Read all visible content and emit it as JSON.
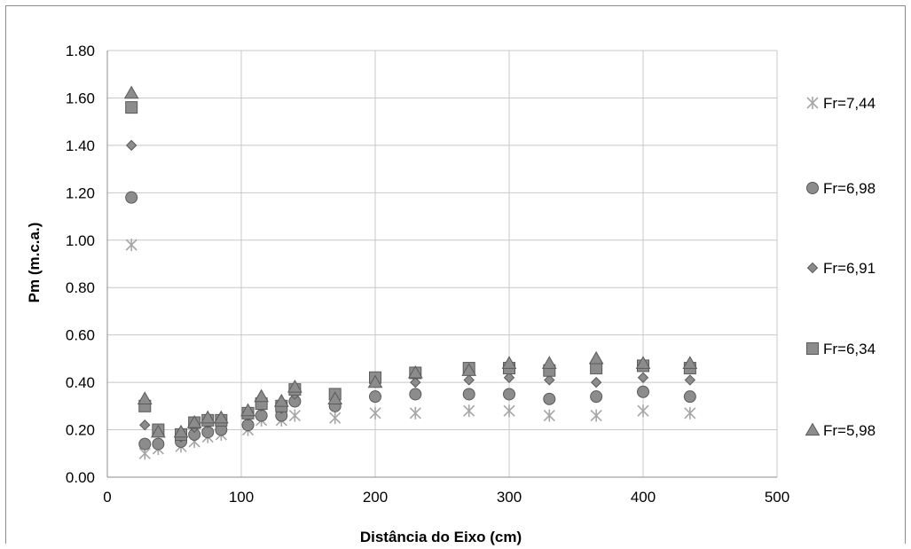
{
  "chart_data": {
    "type": "scatter",
    "title": "",
    "xlabel": "Distância do Eixo (cm)",
    "ylabel": "Pm (m.c.a.)",
    "xlim": [
      0,
      500
    ],
    "ylim": [
      0,
      1.8
    ],
    "xticks": [
      0,
      100,
      200,
      300,
      400,
      500
    ],
    "xtick_labels": [
      "0",
      "100",
      "200",
      "300",
      "400",
      "500"
    ],
    "yticks": [
      0,
      0.2,
      0.4,
      0.6,
      0.8,
      1.0,
      1.2,
      1.4,
      1.6,
      1.8
    ],
    "ytick_labels": [
      "0.00",
      "0.20",
      "0.40",
      "0.60",
      "0.80",
      "1.00",
      "1.20",
      "1.40",
      "1.60",
      "1.80"
    ],
    "grid": true,
    "legend_position": "right",
    "series": [
      {
        "name": "Fr=7,44",
        "marker": "asterisk",
        "color": "#a6a6a6",
        "x": [
          18,
          28,
          38,
          55,
          65,
          75,
          85,
          105,
          115,
          130,
          140,
          170,
          200,
          230,
          270,
          300,
          330,
          365,
          400,
          435
        ],
        "y": [
          0.98,
          0.1,
          0.12,
          0.13,
          0.15,
          0.17,
          0.18,
          0.2,
          0.24,
          0.24,
          0.26,
          0.25,
          0.27,
          0.27,
          0.28,
          0.28,
          0.26,
          0.26,
          0.28,
          0.27
        ]
      },
      {
        "name": "Fr=6,98",
        "marker": "circle",
        "color": "#8c8c8c",
        "x": [
          18,
          28,
          38,
          55,
          65,
          75,
          85,
          105,
          115,
          130,
          140,
          170,
          200,
          230,
          270,
          300,
          330,
          365,
          400,
          435
        ],
        "y": [
          1.18,
          0.14,
          0.14,
          0.15,
          0.18,
          0.19,
          0.2,
          0.22,
          0.26,
          0.26,
          0.32,
          0.3,
          0.34,
          0.35,
          0.35,
          0.35,
          0.33,
          0.34,
          0.36,
          0.34
        ]
      },
      {
        "name": "Fr=6,91",
        "marker": "diamond",
        "color": "#8c8c8c",
        "x": [
          18,
          28,
          38,
          55,
          65,
          75,
          85,
          105,
          115,
          130,
          140,
          170,
          200,
          230,
          270,
          300,
          330,
          365,
          400,
          435
        ],
        "y": [
          1.4,
          0.22,
          0.19,
          0.17,
          0.21,
          0.23,
          0.24,
          0.26,
          0.3,
          0.29,
          0.35,
          0.33,
          0.4,
          0.4,
          0.41,
          0.42,
          0.41,
          0.4,
          0.42,
          0.41
        ]
      },
      {
        "name": "Fr=6,34",
        "marker": "square",
        "color": "#8c8c8c",
        "x": [
          18,
          28,
          38,
          55,
          65,
          75,
          85,
          105,
          115,
          130,
          140,
          170,
          200,
          230,
          270,
          300,
          330,
          365,
          400,
          435
        ],
        "y": [
          1.56,
          0.3,
          0.2,
          0.18,
          0.23,
          0.24,
          0.24,
          0.27,
          0.31,
          0.3,
          0.37,
          0.35,
          0.42,
          0.44,
          0.46,
          0.46,
          0.45,
          0.46,
          0.47,
          0.46
        ]
      },
      {
        "name": "Fr=5,98",
        "marker": "triangle",
        "color": "#8c8c8c",
        "x": [
          18,
          28,
          38,
          55,
          65,
          75,
          85,
          105,
          115,
          130,
          140,
          170,
          200,
          230,
          270,
          300,
          330,
          365,
          400,
          435
        ],
        "y": [
          1.62,
          0.33,
          0.19,
          0.19,
          0.23,
          0.25,
          0.25,
          0.28,
          0.34,
          0.32,
          0.38,
          0.33,
          0.4,
          0.44,
          0.45,
          0.48,
          0.48,
          0.5,
          0.48,
          0.48
        ]
      }
    ]
  }
}
